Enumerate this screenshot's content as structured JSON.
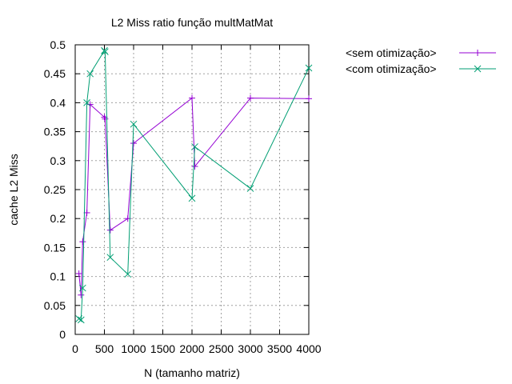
{
  "chart_data": {
    "type": "line",
    "title": "L2 Miss ratio função multMatMat",
    "xlabel": "N (tamanho matriz)",
    "ylabel": "cache L2 Miss",
    "xlim": [
      0,
      4000
    ],
    "ylim": [
      0,
      0.5
    ],
    "xticks": [
      "0",
      "500",
      "1000",
      "1500",
      "2000",
      "2500",
      "3000",
      "3500",
      "4000"
    ],
    "yticks": [
      "0",
      "0.05",
      "0.1",
      "0.15",
      "0.2",
      "0.25",
      "0.3",
      "0.35",
      "0.4",
      "0.45",
      "0.5"
    ],
    "grid": true,
    "legend_position": "top-right-outside",
    "series": [
      {
        "name": "<sem otimização>",
        "color": "#9400d3",
        "marker": "plus",
        "x": [
          64,
          100,
          128,
          200,
          256,
          500,
          512,
          600,
          900,
          1000,
          2000,
          2048,
          3000,
          4000
        ],
        "y": [
          0.105,
          0.068,
          0.16,
          0.21,
          0.397,
          0.375,
          0.372,
          0.18,
          0.2,
          0.33,
          0.408,
          0.29,
          0.408,
          0.407
        ]
      },
      {
        "name": "<com otimização>",
        "color": "#009e73",
        "marker": "x",
        "x": [
          64,
          100,
          128,
          200,
          256,
          500,
          512,
          600,
          900,
          1000,
          2000,
          2048,
          3000,
          4000
        ],
        "y": [
          0.027,
          0.025,
          0.08,
          0.4,
          0.45,
          0.49,
          0.488,
          0.133,
          0.104,
          0.363,
          0.235,
          0.324,
          0.252,
          0.46
        ]
      }
    ]
  }
}
